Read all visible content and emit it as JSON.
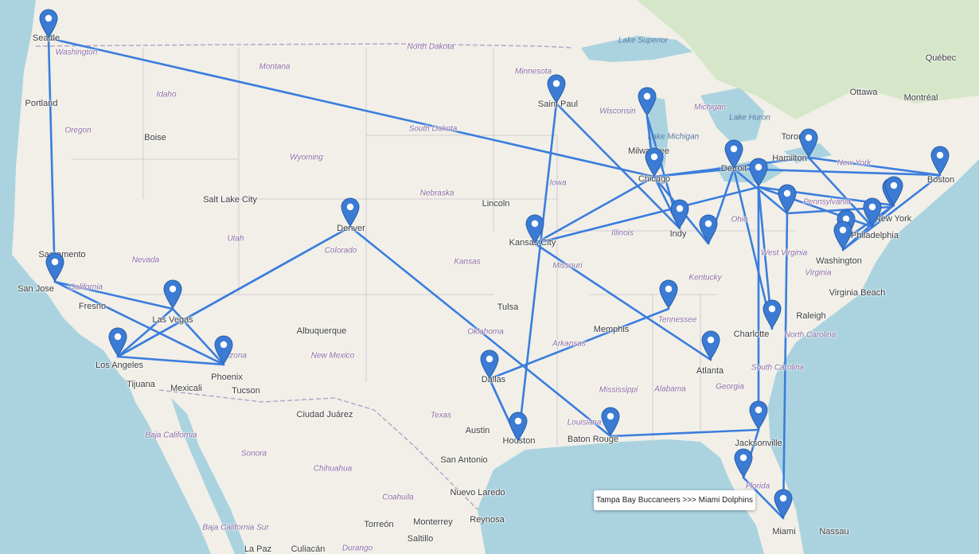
{
  "map": {
    "tooltip": "Tampa Bay Buccaneers >>> Miami Dolphins",
    "route_color": "#3b7ddd",
    "marker_color": "#3b7bd4",
    "cities": [
      {
        "id": "seattle",
        "label": "Seattle"
      },
      {
        "id": "portland",
        "label": "Portland"
      },
      {
        "id": "boise",
        "label": "Boise"
      },
      {
        "id": "sacramento",
        "label": "Sacramento"
      },
      {
        "id": "sanjose",
        "label": "San Jose"
      },
      {
        "id": "fresno",
        "label": "Fresno"
      },
      {
        "id": "saltlake",
        "label": "Salt Lake City"
      },
      {
        "id": "lasvegas",
        "label": "Las Vegas"
      },
      {
        "id": "losangeles",
        "label": "Los Angeles"
      },
      {
        "id": "phoenix",
        "label": "Phoenix"
      },
      {
        "id": "tucson",
        "label": "Tucson"
      },
      {
        "id": "tijuana",
        "label": "Tijuana"
      },
      {
        "id": "mexicali",
        "label": "Mexicali"
      },
      {
        "id": "denver",
        "label": "Denver"
      },
      {
        "id": "albuquerque",
        "label": "Albuquerque"
      },
      {
        "id": "ciudadjuarez",
        "label": "Ciudad Juárez"
      },
      {
        "id": "lincoln",
        "label": "Lincoln"
      },
      {
        "id": "kansascity",
        "label": "Kansas City"
      },
      {
        "id": "tulsa",
        "label": "Tulsa"
      },
      {
        "id": "saintpaul",
        "label": "Saint Paul"
      },
      {
        "id": "dallas",
        "label": "Dallas"
      },
      {
        "id": "austin",
        "label": "Austin"
      },
      {
        "id": "sanantonio",
        "label": "San Antonio"
      },
      {
        "id": "houston",
        "label": "Houston"
      },
      {
        "id": "batonrouge",
        "label": "Baton Rouge"
      },
      {
        "id": "memphis",
        "label": "Memphis"
      },
      {
        "id": "milwaukee",
        "label": "Milwaukee"
      },
      {
        "id": "chicago",
        "label": "Chicago"
      },
      {
        "id": "detroit",
        "label": "Detroit"
      },
      {
        "id": "indy",
        "label": "Indy"
      },
      {
        "id": "toronto",
        "label": "Toronto"
      },
      {
        "id": "hamilton",
        "label": "Hamilton"
      },
      {
        "id": "ottawa",
        "label": "Ottawa"
      },
      {
        "id": "montreal",
        "label": "Montréal"
      },
      {
        "id": "quebec",
        "label": "Québec"
      },
      {
        "id": "boston",
        "label": "Boston"
      },
      {
        "id": "newyork",
        "label": "New York"
      },
      {
        "id": "philadelphia",
        "label": "Philadelphia"
      },
      {
        "id": "washington",
        "label": "Washington"
      },
      {
        "id": "virginiabeach",
        "label": "Virginia Beach"
      },
      {
        "id": "raleigh",
        "label": "Raleigh"
      },
      {
        "id": "charlotte",
        "label": "Charlotte"
      },
      {
        "id": "atlanta",
        "label": "Atlanta"
      },
      {
        "id": "jacksonville",
        "label": "Jacksonville"
      },
      {
        "id": "miami",
        "label": "Miami"
      },
      {
        "id": "nassau",
        "label": "Nassau"
      },
      {
        "id": "monterrey",
        "label": "Monterrey"
      },
      {
        "id": "reynosa",
        "label": "Reynosa"
      },
      {
        "id": "nuevolaredo",
        "label": "Nuevo Laredo"
      },
      {
        "id": "torreon",
        "label": "Torreón"
      },
      {
        "id": "saltillo",
        "label": "Saltillo"
      },
      {
        "id": "culiacan",
        "label": "Culiacán"
      },
      {
        "id": "lapaz",
        "label": "La Paz"
      }
    ],
    "regions": [
      {
        "id": "washington-state",
        "label": "Washington"
      },
      {
        "id": "oregon",
        "label": "Oregon"
      },
      {
        "id": "idaho",
        "label": "Idaho"
      },
      {
        "id": "montana",
        "label": "Montana"
      },
      {
        "id": "wyoming",
        "label": "Wyoming"
      },
      {
        "id": "nevada",
        "label": "Nevada"
      },
      {
        "id": "utah",
        "label": "Utah"
      },
      {
        "id": "california",
        "label": "California"
      },
      {
        "id": "arizona",
        "label": "Arizona"
      },
      {
        "id": "colorado",
        "label": "Colorado"
      },
      {
        "id": "newmexico",
        "label": "New Mexico"
      },
      {
        "id": "northdakota",
        "label": "North Dakota"
      },
      {
        "id": "southdakota",
        "label": "South Dakota"
      },
      {
        "id": "nebraska",
        "label": "Nebraska"
      },
      {
        "id": "kansas",
        "label": "Kansas"
      },
      {
        "id": "oklahoma",
        "label": "Oklahoma"
      },
      {
        "id": "texas",
        "label": "Texas"
      },
      {
        "id": "minnesota",
        "label": "Minnesota"
      },
      {
        "id": "iowa",
        "label": "Iowa"
      },
      {
        "id": "missouri",
        "label": "Missouri"
      },
      {
        "id": "arkansas",
        "label": "Arkansas"
      },
      {
        "id": "louisiana",
        "label": "Louisiana"
      },
      {
        "id": "wisconsin",
        "label": "Wisconsin"
      },
      {
        "id": "illinois",
        "label": "Illinois"
      },
      {
        "id": "michigan",
        "label": "Michigan"
      },
      {
        "id": "ohio",
        "label": "Ohio"
      },
      {
        "id": "kentucky",
        "label": "Kentucky"
      },
      {
        "id": "tennessee",
        "label": "Tennessee"
      },
      {
        "id": "mississippi",
        "label": "Mississippi"
      },
      {
        "id": "alabama",
        "label": "Alabama"
      },
      {
        "id": "georgia",
        "label": "Georgia"
      },
      {
        "id": "florida",
        "label": "Florida"
      },
      {
        "id": "southcarolina",
        "label": "South Carolina"
      },
      {
        "id": "northcarolina",
        "label": "North Carolina"
      },
      {
        "id": "virginia",
        "label": "Virginia"
      },
      {
        "id": "westvirginia",
        "label": "West Virginia"
      },
      {
        "id": "pennsylvania",
        "label": "Pennsylvania"
      },
      {
        "id": "newyorkstate",
        "label": "New York"
      },
      {
        "id": "bajacalifornia",
        "label": "Baja California"
      },
      {
        "id": "bajacaliforniasur",
        "label": "Baja California Sur"
      },
      {
        "id": "sonora",
        "label": "Sonora"
      },
      {
        "id": "chihuahua",
        "label": "Chihuahua"
      },
      {
        "id": "coahuila",
        "label": "Coahuila"
      },
      {
        "id": "durango",
        "label": "Durango"
      }
    ],
    "water": [
      {
        "id": "lakesuperior",
        "label": "Lake Superior"
      },
      {
        "id": "lakemichigan",
        "label": "Lake Michigan"
      },
      {
        "id": "lakehuron",
        "label": "Lake Huron"
      }
    ]
  }
}
